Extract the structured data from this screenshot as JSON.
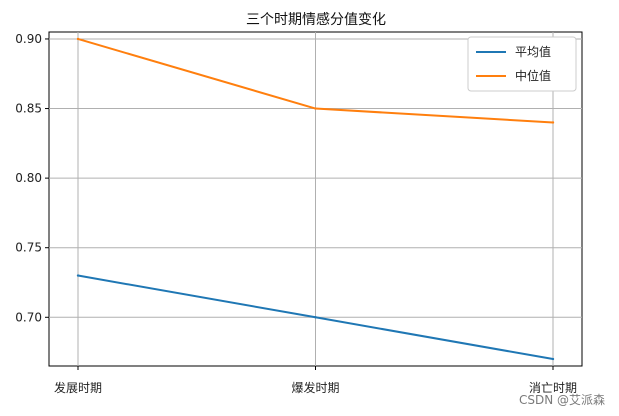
{
  "chart_data": {
    "type": "line",
    "title": "三个时期情感分值变化",
    "categories": [
      "发展时期",
      "爆发时期",
      "消亡时期"
    ],
    "series": [
      {
        "name": "平均值",
        "color": "#1f77b4",
        "values": [
          0.73,
          0.7,
          0.67
        ]
      },
      {
        "name": "中位值",
        "color": "#ff7f0e",
        "values": [
          0.9,
          0.85,
          0.84
        ]
      }
    ],
    "yticks": [
      "0.70",
      "0.75",
      "0.80",
      "0.85",
      "0.90"
    ],
    "ylim": [
      0.665,
      0.905
    ],
    "grid": true,
    "legend": "top-right"
  },
  "watermark": "CSDN @艾派森"
}
